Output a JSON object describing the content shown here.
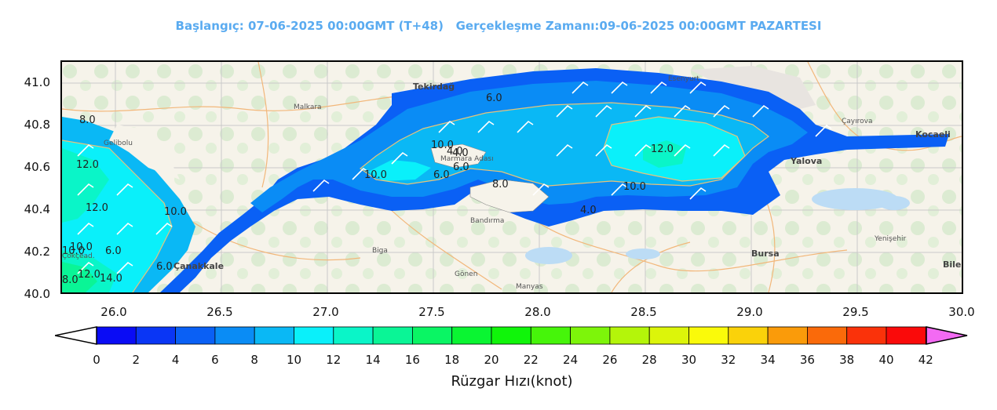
{
  "header": {
    "title": "Başlangıç: 07-06-2025 00:00GMT (T+48)   Gerçekleşme Zamanı:09-06-2025 00:00GMT PAZARTESI"
  },
  "axes": {
    "y_ticks": [
      "41.0",
      "40.8",
      "40.6",
      "40.4",
      "40.2",
      "40.0"
    ],
    "x_ticks": [
      "26.0",
      "26.5",
      "27.0",
      "27.5",
      "28.0",
      "28.5",
      "29.0",
      "29.5",
      "30.0"
    ]
  },
  "contour_labels": [
    "8.0",
    "12.0",
    "12.0",
    "10.0",
    "6.0",
    "10.0",
    "4.0",
    "6.0",
    "10.0",
    "8.0",
    "12.0",
    "10.0",
    "6.0",
    "4.0",
    "10.0",
    "12.0",
    "14.0",
    "8.0",
    "6.0",
    "10.0",
    "6.0",
    "4.0"
  ],
  "places": {
    "tekirdag": "Tekirdağ",
    "canakkale": "Çanakkale",
    "yalova": "Yalova",
    "bursa": "Bursa",
    "kocaeli": "Kocaeli",
    "marmara_adasi": "Marmara Adası",
    "bandirma": "Bandırma",
    "malkara": "Malkara",
    "gonen": "Gönen",
    "manyas": "Manyas",
    "biga": "Biga",
    "bile": "Bile",
    "cayirova": "Çayırova",
    "esenyurt": "Esenyurt",
    "gelibolu": "Gelibolu",
    "cokcekad": "Çokçead.",
    "yenisehir": "Yenişehir"
  },
  "colorbar": {
    "labels": [
      "0",
      "2",
      "4",
      "6",
      "8",
      "10",
      "12",
      "14",
      "16",
      "18",
      "20",
      "22",
      "24",
      "26",
      "28",
      "30",
      "32",
      "34",
      "36",
      "38",
      "40",
      "42"
    ],
    "colors": [
      "#0a0cf5",
      "#0a36f5",
      "#0a60f5",
      "#0a8cf5",
      "#0ab8f5",
      "#0af0fa",
      "#0af5c8",
      "#0af596",
      "#0af564",
      "#0af532",
      "#10f50a",
      "#46f50a",
      "#7df50a",
      "#b4f50a",
      "#dcf50a",
      "#fafa0a",
      "#fad20a",
      "#fa9b0a",
      "#fa6a0a",
      "#fa320a",
      "#fa0a0a"
    ],
    "over_color": "#f36af3",
    "under_color": "#ffffff",
    "title": "Rüzgar Hızı(knot)"
  }
}
